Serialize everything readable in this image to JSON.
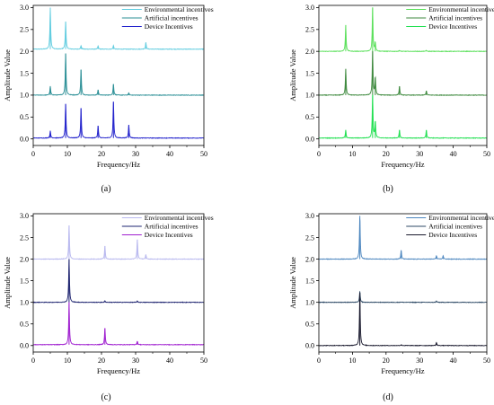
{
  "chart_data": [
    {
      "panel_label": "(a)",
      "type": "line",
      "xlabel": "Frequency/Hz",
      "ylabel": "Amplitude Value",
      "xlim": [
        0,
        50
      ],
      "ylim": [
        -0.15,
        3.05
      ],
      "xticks": [
        0,
        10,
        20,
        30,
        40,
        50
      ],
      "yticks": [
        0.0,
        0.5,
        1.0,
        1.5,
        2.0,
        2.5,
        3.0
      ],
      "legend_position": "top-right",
      "grid": false,
      "series": [
        {
          "name": "Environmental incentives",
          "color": "#63cde0",
          "baseline": 2.05,
          "peaks": [
            [
              5.0,
              3.0
            ],
            [
              9.5,
              2.68
            ],
            [
              14.0,
              2.13
            ],
            [
              19.0,
              2.12
            ],
            [
              23.5,
              2.13
            ],
            [
              33.0,
              2.2
            ]
          ]
        },
        {
          "name": "Artificial incentives",
          "color": "#2b8f96",
          "baseline": 1.0,
          "peaks": [
            [
              5.0,
              1.2
            ],
            [
              9.5,
              1.95
            ],
            [
              14.0,
              1.58
            ],
            [
              19.0,
              1.12
            ],
            [
              23.5,
              1.25
            ],
            [
              28.0,
              1.05
            ]
          ]
        },
        {
          "name": "Device Incentives",
          "color": "#2222cc",
          "baseline": 0.02,
          "peaks": [
            [
              5.0,
              0.18
            ],
            [
              9.5,
              0.8
            ],
            [
              14.0,
              0.7
            ],
            [
              19.0,
              0.3
            ],
            [
              23.5,
              0.85
            ],
            [
              28.0,
              0.32
            ]
          ]
        }
      ]
    },
    {
      "panel_label": "(b)",
      "type": "line",
      "xlabel": "Frequency/Hz",
      "ylabel": "Amplitude Value",
      "xlim": [
        0,
        50
      ],
      "ylim": [
        -0.15,
        3.05
      ],
      "xticks": [
        0,
        10,
        20,
        30,
        40,
        50
      ],
      "yticks": [
        0.0,
        0.5,
        1.0,
        1.5,
        2.0,
        2.5,
        3.0
      ],
      "legend_position": "top-right",
      "grid": false,
      "series": [
        {
          "name": "Environmental incentives",
          "color": "#5ce05c",
          "baseline": 2.0,
          "peaks": [
            [
              8.0,
              2.6
            ],
            [
              16.0,
              3.0
            ],
            [
              16.8,
              2.2
            ],
            [
              24.0,
              2.02
            ],
            [
              32.0,
              2.02
            ]
          ]
        },
        {
          "name": "Artificial incentives",
          "color": "#3f8a3f",
          "baseline": 1.0,
          "peaks": [
            [
              8.0,
              1.6
            ],
            [
              16.0,
              2.0
            ],
            [
              16.8,
              1.4
            ],
            [
              24.0,
              1.2
            ],
            [
              32.0,
              1.1
            ]
          ]
        },
        {
          "name": "Device Incentives",
          "color": "#22e052",
          "baseline": 0.02,
          "peaks": [
            [
              8.0,
              0.2
            ],
            [
              16.0,
              1.0
            ],
            [
              16.8,
              0.4
            ],
            [
              24.0,
              0.2
            ],
            [
              32.0,
              0.2
            ]
          ]
        }
      ]
    },
    {
      "panel_label": "(c)",
      "type": "line",
      "xlabel": "Frequency/Hz",
      "ylabel": "Amplitude Value",
      "xlim": [
        0,
        50
      ],
      "ylim": [
        -0.15,
        3.05
      ],
      "xticks": [
        0,
        10,
        20,
        30,
        40,
        50
      ],
      "yticks": [
        0.0,
        0.5,
        1.0,
        1.5,
        2.0,
        2.5,
        3.0
      ],
      "legend_position": "top-right",
      "grid": false,
      "series": [
        {
          "name": "Environmental incentives",
          "color": "#b9b9ef",
          "baseline": 2.0,
          "peaks": [
            [
              10.5,
              2.78
            ],
            [
              21.0,
              2.3
            ],
            [
              30.5,
              2.45
            ],
            [
              33.0,
              2.1
            ]
          ]
        },
        {
          "name": "Artificial incentives",
          "color": "#1e2470",
          "baseline": 1.0,
          "peaks": [
            [
              10.5,
              2.0
            ],
            [
              21.0,
              1.03
            ],
            [
              30.5,
              1.03
            ]
          ]
        },
        {
          "name": "Device Incentives",
          "color": "#a020d0",
          "baseline": 0.02,
          "peaks": [
            [
              10.5,
              1.0
            ],
            [
              21.0,
              0.4
            ],
            [
              30.5,
              0.1
            ]
          ]
        }
      ]
    },
    {
      "panel_label": "(d)",
      "type": "line",
      "xlabel": "Frequency/Hz",
      "ylabel": "Amplitude Value",
      "xlim": [
        0,
        50
      ],
      "ylim": [
        -0.15,
        3.05
      ],
      "xticks": [
        0,
        10,
        20,
        30,
        40,
        50
      ],
      "yticks": [
        0.0,
        0.5,
        1.0,
        1.5,
        2.0,
        2.5,
        3.0
      ],
      "legend_position": "top-right",
      "grid": false,
      "series": [
        {
          "name": "Environmental incentives",
          "color": "#4c86bf",
          "baseline": 2.0,
          "peaks": [
            [
              12.2,
              3.0
            ],
            [
              24.5,
              2.2
            ],
            [
              35.0,
              2.08
            ],
            [
              37.0,
              2.08
            ]
          ]
        },
        {
          "name": "Artificial incentives",
          "color": "#2e4a66",
          "baseline": 1.0,
          "peaks": [
            [
              12.2,
              1.25
            ],
            [
              24.5,
              1.01
            ],
            [
              35.0,
              1.03
            ]
          ]
        },
        {
          "name": "Device Incentives",
          "color": "#1a1a2e",
          "baseline": 0.0,
          "peaks": [
            [
              12.2,
              1.22
            ],
            [
              24.5,
              0.02
            ],
            [
              35.0,
              0.07
            ]
          ]
        }
      ]
    }
  ]
}
